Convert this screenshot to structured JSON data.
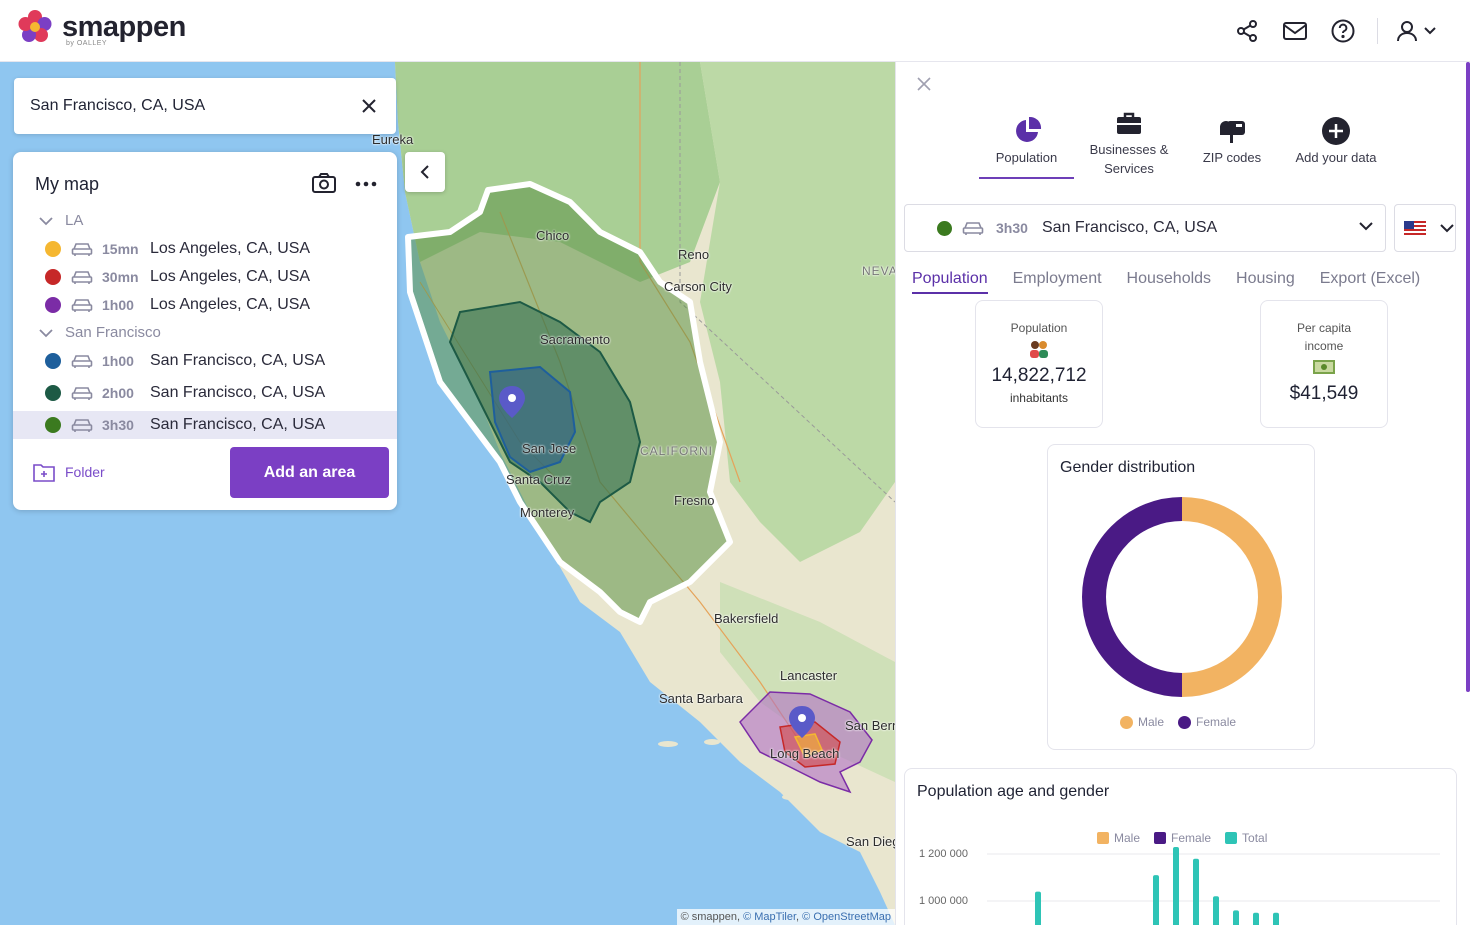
{
  "header": {
    "brand": "smappen",
    "brand_sub": "by OALLEY",
    "icons": [
      "share-icon",
      "mail-icon",
      "help-icon",
      "user-icon"
    ]
  },
  "search": {
    "value": "San Francisco, CA, USA"
  },
  "my_map": {
    "title": "My map",
    "groups": [
      {
        "name": "LA",
        "areas": [
          {
            "color": "#f5b731",
            "duration": "15mn",
            "place": "Los Angeles, CA, USA"
          },
          {
            "color": "#c62828",
            "duration": "30mn",
            "place": "Los Angeles, CA, USA"
          },
          {
            "color": "#7b2ca6",
            "duration": "1h00",
            "place": "Los Angeles, CA, USA"
          }
        ]
      },
      {
        "name": "San Francisco",
        "areas": [
          {
            "color": "#1e5f9c",
            "duration": "1h00",
            "place": "San Francisco, CA, USA"
          },
          {
            "color": "#1d5a45",
            "duration": "2h00",
            "place": "San Francisco, CA, USA"
          },
          {
            "color": "#3b7a1f",
            "duration": "3h30",
            "place": "San Francisco, CA, USA"
          }
        ]
      }
    ],
    "folder_label": "Folder",
    "add_area_label": "Add an area"
  },
  "map": {
    "cities": [
      "Eureka",
      "Chico",
      "Reno",
      "Carson City",
      "NEVA",
      "Sacramento",
      "San Jose",
      "Santa Cruz",
      "Monterey",
      "CALIFORNI",
      "Fresno",
      "Bakersfield",
      "Lancaster",
      "Santa Barbara",
      "San Bernard",
      "Long Beach",
      "San Dieg"
    ],
    "attribution": {
      "prefix": "© smappen, ",
      "maptiler": "© MapTiler",
      "sep": ", ",
      "osm": "© OpenStreetMap"
    }
  },
  "right_panel": {
    "categories": [
      {
        "label": "Population",
        "icon": "pie-chart-icon",
        "active": true
      },
      {
        "label": "Businesses & Services",
        "icon": "briefcase-icon",
        "active": false
      },
      {
        "label": "ZIP codes",
        "icon": "mailbox-icon",
        "active": false
      },
      {
        "label": "Add your data",
        "icon": "plus-circle-icon",
        "active": false
      }
    ],
    "selected_area": {
      "duration": "3h30",
      "place": "San Francisco, CA, USA",
      "color": "#3b7a1f"
    },
    "tabs": [
      "Population",
      "Employment",
      "Households",
      "Housing",
      "Export (Excel)"
    ],
    "active_tab": "Population",
    "kpis": {
      "population": {
        "label": "Population",
        "value": "14,822,712",
        "unit": "inhabitants"
      },
      "income": {
        "label": "Per capita income",
        "value": "$41,549"
      }
    },
    "gender_chart": {
      "title": "Gender distribution",
      "male_label": "Male",
      "female_label": "Female",
      "male_color": "#f2b362",
      "female_color": "#4a1a85"
    },
    "age_chart": {
      "title": "Population age and gender",
      "legend": [
        "Male",
        "Female",
        "Total"
      ],
      "colors": {
        "male": "#f2b362",
        "female": "#4a1a85",
        "total": "#2ec4b6"
      },
      "ticks": [
        "1 200 000",
        "1 000 000"
      ]
    }
  },
  "chart_data": [
    {
      "type": "pie",
      "title": "Gender distribution",
      "labels": [
        "Male",
        "Female"
      ],
      "values": [
        50,
        50
      ],
      "legend": "bottom"
    },
    {
      "type": "bar",
      "title": "Population age and gender",
      "series": [
        {
          "name": "Total",
          "values": [
            820000,
            1040000,
            1110000,
            1230000,
            1180000,
            1020000,
            960000,
            950000,
            950000
          ]
        }
      ],
      "yticks": [
        1000000,
        1200000
      ],
      "legend": "top"
    }
  ]
}
